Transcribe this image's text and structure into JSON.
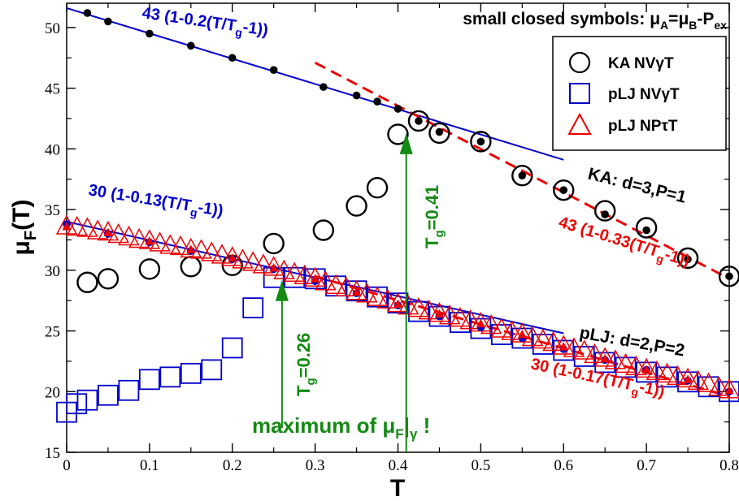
{
  "chart_data": {
    "type": "scatter",
    "title": "",
    "xlabel": "T",
    "ylabel_main": "μ",
    "ylabel_sub": "F",
    "ylabel_tail": "(T)",
    "xlim": [
      0,
      0.8
    ],
    "ylim": [
      15,
      52
    ],
    "x_ticks": [
      0,
      0.1,
      0.2,
      0.3,
      0.4,
      0.5,
      0.6,
      0.7,
      0.8
    ],
    "x_tick_labels": [
      "0",
      "0.1",
      "0.2",
      "0.3",
      "0.4",
      "0.5",
      "0.6",
      "0.7",
      "0.8"
    ],
    "y_ticks": [
      15,
      20,
      25,
      30,
      35,
      40,
      45,
      50
    ],
    "y_tick_labels": [
      "15",
      "20",
      "25",
      "30",
      "35",
      "40",
      "45",
      "50"
    ],
    "grid": false,
    "colors": {
      "black": "#000000",
      "blue": "#0000cc",
      "red": "#ee0000",
      "green": "#138a13"
    },
    "legend": {
      "placement": "top-right",
      "entries": [
        {
          "marker": "circle",
          "color": "#000000",
          "label": "KA NVγT"
        },
        {
          "marker": "square",
          "color": "#0000cc",
          "label": "pLJ NVγT"
        },
        {
          "marker": "triangle",
          "color": "#ee0000",
          "label": "pLJ NPτT"
        }
      ]
    },
    "series": [
      {
        "name": "KA NVγT",
        "marker": "circle",
        "color": "#000000",
        "x": [
          0.025,
          0.05,
          0.1,
          0.15,
          0.2,
          0.25,
          0.31,
          0.35,
          0.375,
          0.4,
          0.425,
          0.45,
          0.5,
          0.55,
          0.6,
          0.65,
          0.7,
          0.75,
          0.8
        ],
        "y": [
          29.0,
          29.3,
          30.1,
          30.3,
          30.4,
          32.2,
          33.3,
          35.3,
          36.8,
          41.2,
          42.3,
          41.3,
          40.6,
          37.8,
          36.6,
          34.9,
          33.5,
          31.0,
          29.5
        ]
      },
      {
        "name": "pLJ NVγT",
        "marker": "square",
        "color": "#0000cc",
        "x": [
          0.0,
          0.012,
          0.025,
          0.05,
          0.075,
          0.1,
          0.125,
          0.15,
          0.175,
          0.2,
          0.225,
          0.25,
          0.275,
          0.3,
          0.325,
          0.35,
          0.375,
          0.4,
          0.425,
          0.45,
          0.475,
          0.5,
          0.525,
          0.55,
          0.575,
          0.6,
          0.625,
          0.65,
          0.675,
          0.7,
          0.725,
          0.75,
          0.775,
          0.8
        ],
        "y": [
          18.3,
          19.0,
          19.3,
          19.7,
          20.1,
          21.0,
          21.2,
          21.5,
          21.8,
          23.6,
          26.9,
          29.4,
          29.4,
          29.3,
          28.7,
          28.3,
          27.8,
          27.3,
          26.6,
          26.2,
          25.7,
          25.2,
          24.7,
          24.4,
          23.9,
          23.4,
          22.9,
          22.4,
          22.0,
          21.6,
          21.2,
          20.8,
          20.4,
          20.0
        ]
      },
      {
        "name": "pLJ NPτT",
        "marker": "triangle",
        "color": "#ee0000",
        "x": [
          0.0,
          0.0125,
          0.025,
          0.0375,
          0.05,
          0.0625,
          0.075,
          0.0875,
          0.1,
          0.1125,
          0.125,
          0.1375,
          0.15,
          0.1625,
          0.175,
          0.1875,
          0.2,
          0.2125,
          0.225,
          0.2375,
          0.25,
          0.2625,
          0.275,
          0.2875,
          0.3,
          0.3125,
          0.325,
          0.3375,
          0.35,
          0.3625,
          0.375,
          0.3875,
          0.4,
          0.4125,
          0.425,
          0.4375,
          0.45,
          0.4625,
          0.475,
          0.4875,
          0.5,
          0.5125,
          0.525,
          0.5375,
          0.55,
          0.5625,
          0.575,
          0.5875,
          0.6,
          0.6125,
          0.625,
          0.6375,
          0.65,
          0.6625,
          0.675,
          0.6875,
          0.7,
          0.7125,
          0.725,
          0.7375,
          0.75,
          0.7625,
          0.775,
          0.7875,
          0.8
        ],
        "y": [
          33.6,
          33.5,
          33.4,
          33.2,
          33.1,
          32.9,
          32.7,
          32.5,
          32.4,
          32.2,
          32.0,
          31.9,
          31.7,
          31.6,
          31.4,
          31.2,
          31.0,
          30.8,
          30.6,
          30.4,
          30.2,
          29.9,
          29.7,
          29.5,
          29.3,
          29.0,
          28.7,
          28.5,
          28.2,
          28.0,
          27.7,
          27.5,
          27.2,
          27.0,
          26.8,
          26.6,
          26.4,
          26.2,
          26.0,
          25.8,
          25.6,
          25.4,
          25.1,
          24.9,
          24.7,
          24.4,
          24.2,
          24.0,
          23.7,
          23.5,
          23.3,
          23.0,
          22.7,
          22.5,
          22.2,
          22.0,
          21.8,
          21.6,
          21.4,
          21.2,
          21.0,
          20.8,
          20.6,
          20.3,
          20.1
        ]
      },
      {
        "name": "small closed symbols (KA)",
        "marker": "dot",
        "color": "#000000",
        "x": [
          0.025,
          0.05,
          0.1,
          0.15,
          0.2,
          0.25,
          0.31,
          0.35,
          0.375,
          0.4,
          0.425,
          0.45,
          0.5,
          0.55,
          0.6,
          0.65,
          0.7,
          0.75,
          0.8
        ],
        "y": [
          51.2,
          50.5,
          49.5,
          48.5,
          47.5,
          46.5,
          45.1,
          44.4,
          43.9,
          43.3,
          42.3,
          41.4,
          40.6,
          37.8,
          36.6,
          34.6,
          33.3,
          30.9,
          29.5
        ]
      },
      {
        "name": "small closed symbols (pLJ)",
        "marker": "dot",
        "color": "#0000cc",
        "x": [
          0.0,
          0.05,
          0.1,
          0.15,
          0.2,
          0.25,
          0.3,
          0.35,
          0.4,
          0.45,
          0.5,
          0.55,
          0.6,
          0.65,
          0.7,
          0.75,
          0.8
        ],
        "y": [
          33.8,
          33.0,
          32.3,
          31.6,
          30.9,
          30.1,
          29.1,
          28.1,
          27.1,
          26.2,
          25.3,
          24.4,
          23.5,
          22.6,
          21.8,
          20.9,
          20.0
        ]
      },
      {
        "name": "small closed symbols (pLJ red)",
        "marker": "tri-filled",
        "color": "#ee0000",
        "x": [
          0.0,
          0.05,
          0.1,
          0.15,
          0.2,
          0.25,
          0.3,
          0.35,
          0.4,
          0.45,
          0.5,
          0.55,
          0.6,
          0.65,
          0.7,
          0.75,
          0.8
        ],
        "y": [
          33.6,
          33.1,
          32.4,
          31.7,
          31.0,
          30.2,
          29.3,
          28.2,
          27.2,
          26.4,
          25.6,
          24.7,
          23.7,
          22.7,
          21.8,
          21.0,
          20.1
        ]
      }
    ],
    "fit_lines": [
      {
        "id": "ka-low",
        "color": "#0000cc",
        "dash": false,
        "x": [
          0.0,
          0.6
        ],
        "y": [
          51.6,
          39.1
        ]
      },
      {
        "id": "ka-high",
        "color": "#ee0000",
        "dash": true,
        "x": [
          0.3,
          0.8
        ],
        "y": [
          47.1,
          29.3
        ]
      },
      {
        "id": "plj-low",
        "color": "#0000cc",
        "dash": false,
        "x": [
          0.0,
          0.6
        ],
        "y": [
          34.0,
          24.8
        ]
      },
      {
        "id": "plj-high",
        "color": "#ee0000",
        "dash": true,
        "x": [
          0.3,
          0.8
        ],
        "y": [
          29.5,
          19.6
        ]
      }
    ],
    "arrows": [
      {
        "id": "tg-041",
        "color": "#138a13",
        "x": 0.41,
        "y_from": 15.0,
        "y_to": 41.3
      },
      {
        "id": "tg-026",
        "color": "#138a13",
        "x": 0.26,
        "y_from": 17.0,
        "y_to": 29.2
      }
    ],
    "annotations": {
      "header": {
        "pre": "small closed symbols: ",
        "mu1": "μ",
        "s1": "A",
        "eq1": "=",
        "mu2": "μ",
        "s2": "B",
        "rest": "-P",
        "s3": "ex"
      },
      "ka_low_fit": {
        "pre": "43 (1-0.2(T/T",
        "sub": "g",
        "post": "-1))"
      },
      "ka_high_fit": {
        "pre": "43 (1-0.33(T/T",
        "sub": "g",
        "post": "-1))"
      },
      "plj_low_fit": {
        "pre": "30 (1-0.13(T/T",
        "sub": "g",
        "post": "-1))"
      },
      "plj_high_fit": {
        "pre": "30 (1-0.17(T/T",
        "sub": "g",
        "post": "-1))"
      },
      "ka_system": "KA: d=3,P=1",
      "plj_system": "pLJ: d=2,P=2",
      "tg_041": {
        "pre": "T",
        "sub": "g",
        "post": "=0.41"
      },
      "tg_026": {
        "pre": "T",
        "sub": "g",
        "post": "=0.26"
      },
      "maximum": {
        "pre": "maximum of ",
        "mu": "μ",
        "s1": "F",
        "bar": "|",
        "s2": "γ",
        "post": " !"
      }
    }
  }
}
